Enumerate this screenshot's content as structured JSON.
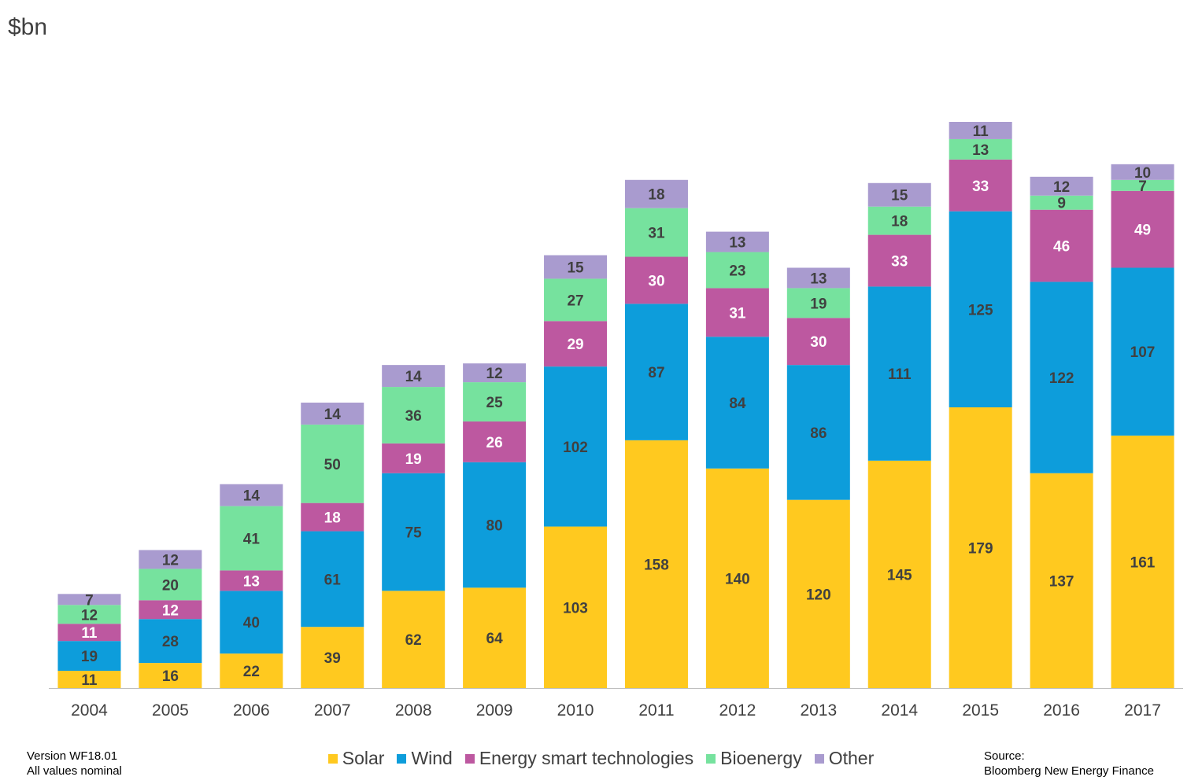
{
  "unit_label": "$bn",
  "footnotes": {
    "version": "Version WF18.01",
    "values_note": "All values  nominal",
    "source_label": "Source:",
    "source_name": "Bloomberg  New Energy Finance"
  },
  "chart_data": {
    "type": "bar",
    "stacked": true,
    "categories": [
      "2004",
      "2005",
      "2006",
      "2007",
      "2008",
      "2009",
      "2010",
      "2011",
      "2012",
      "2013",
      "2014",
      "2015",
      "2016",
      "2017"
    ],
    "series": [
      {
        "name": "Solar",
        "color": "#FFC91F",
        "label_color": "#404040",
        "values": [
          11,
          16,
          22,
          39,
          62,
          64,
          103,
          158,
          140,
          120,
          145,
          179,
          137,
          161
        ]
      },
      {
        "name": "Wind",
        "color": "#0D9DDB",
        "label_color": "#404040",
        "values": [
          19,
          28,
          40,
          61,
          75,
          80,
          102,
          87,
          84,
          86,
          111,
          125,
          122,
          107
        ]
      },
      {
        "name": "Energy smart technologies",
        "color": "#BD58A0",
        "label_color": "#ffffff",
        "values": [
          11,
          12,
          13,
          18,
          19,
          26,
          29,
          30,
          31,
          30,
          33,
          33,
          46,
          49
        ]
      },
      {
        "name": "Bioenergy",
        "color": "#76E29E",
        "label_color": "#404040",
        "values": [
          12,
          20,
          41,
          50,
          36,
          25,
          27,
          31,
          23,
          19,
          18,
          13,
          9,
          7
        ]
      },
      {
        "name": "Other",
        "color": "#A99BCF",
        "label_color": "#404040",
        "values": [
          7,
          12,
          14,
          14,
          14,
          12,
          15,
          18,
          13,
          13,
          15,
          11,
          12,
          10
        ]
      }
    ],
    "legend_position": "bottom",
    "grid": false
  }
}
